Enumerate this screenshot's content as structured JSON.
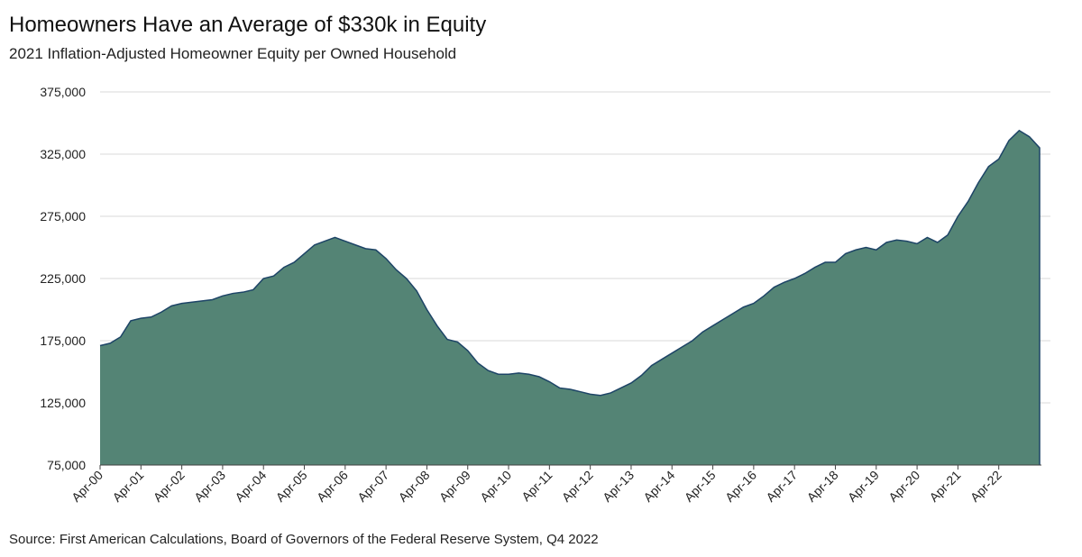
{
  "title": "Homeowners Have an Average of $330k in Equity",
  "subtitle": "2021 Inflation-Adjusted Homeowner Equity per Owned Household",
  "source": "Source: First American Calculations, Board of Governors of the Federal Reserve System, Q4 2022",
  "colors": {
    "area_fill": "#548475",
    "area_stroke": "#1d4466",
    "grid": "#d9d9d9"
  },
  "chart_data": {
    "type": "area",
    "title": "Homeowners Have an Average of $330k in Equity",
    "subtitle": "2021 Inflation-Adjusted Homeowner Equity per Owned Household",
    "xlabel": "",
    "ylabel": "",
    "ylim": [
      75000,
      375000
    ],
    "yticks": [
      75000,
      125000,
      175000,
      225000,
      275000,
      325000,
      375000
    ],
    "ytick_labels": [
      "75,000",
      "125,000",
      "175,000",
      "225,000",
      "275,000",
      "325,000",
      "375,000"
    ],
    "xtick_labels": [
      "Apr-00",
      "Apr-01",
      "Apr-02",
      "Apr-03",
      "Apr-04",
      "Apr-05",
      "Apr-06",
      "Apr-07",
      "Apr-08",
      "Apr-09",
      "Apr-10",
      "Apr-11",
      "Apr-12",
      "Apr-13",
      "Apr-14",
      "Apr-15",
      "Apr-16",
      "Apr-17",
      "Apr-18",
      "Apr-19",
      "Apr-20",
      "Apr-21",
      "Apr-22"
    ],
    "grid": true,
    "frequency": "quarterly",
    "start": "2000 Q2",
    "values": [
      171000,
      173000,
      178000,
      191000,
      193000,
      194000,
      198000,
      203000,
      205000,
      206000,
      207000,
      208000,
      211000,
      213000,
      214000,
      216000,
      225000,
      227000,
      234000,
      238000,
      245000,
      252000,
      255000,
      258000,
      255000,
      252000,
      249000,
      248000,
      241000,
      232000,
      225000,
      215000,
      200000,
      187000,
      176000,
      174000,
      167000,
      157000,
      151000,
      148000,
      148000,
      149000,
      148000,
      146000,
      142000,
      137000,
      136000,
      134000,
      132000,
      131000,
      133000,
      137000,
      141000,
      147000,
      155000,
      160000,
      165000,
      170000,
      175000,
      182000,
      187000,
      192000,
      197000,
      202000,
      205000,
      211000,
      218000,
      222000,
      225000,
      229000,
      234000,
      238000,
      238000,
      245000,
      248000,
      250000,
      248000,
      254000,
      256000,
      255000,
      253000,
      258000,
      254000,
      260000,
      275000,
      287000,
      302000,
      315000,
      321000,
      336000,
      344000,
      339000,
      330000
    ]
  }
}
